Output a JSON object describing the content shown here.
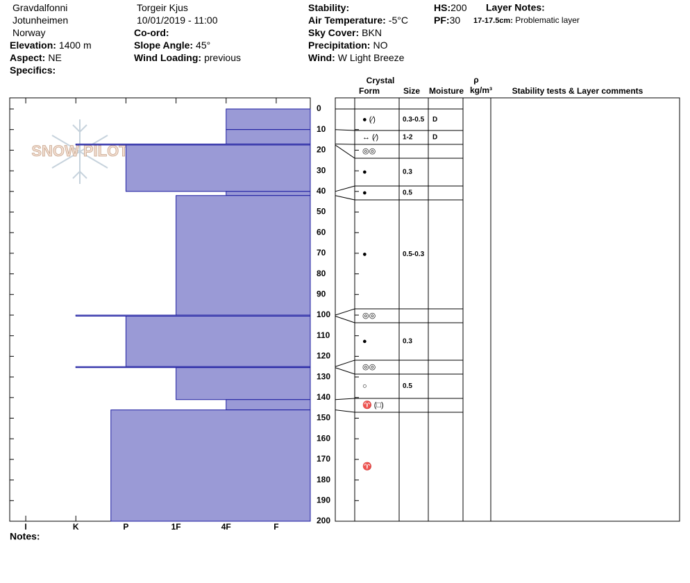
{
  "chart_data": {
    "type": "snow-profile",
    "header": [
      [
        {
          "value": "Gravdalfonni"
        },
        {
          "value": "Jotunheimen"
        },
        {
          "value": "Norway"
        },
        {
          "label": "Elevation:",
          "value": "1400 m"
        },
        {
          "label": "Aspect:",
          "value": "NE"
        },
        {
          "label": "Specifics:"
        }
      ],
      [
        {
          "value": "Torgeir Kjus"
        },
        {
          "value": "10/01/2019 - 11:00"
        },
        {
          "label": "Co-ord:"
        },
        {
          "label": "Slope Angle:",
          "value": "45°"
        },
        {
          "label": "Wind Loading:",
          "value": "previous"
        }
      ],
      [
        {
          "label": "Stability:"
        },
        {
          "label": "Air Temperature:",
          "value": "-5°C"
        },
        {
          "label": "Sky Cover:",
          "value": "BKN"
        },
        {
          "label": "Precipitation:",
          "value": "NO"
        },
        {
          "label": "Wind:",
          "value": "W Light Breeze"
        }
      ],
      [
        {
          "label": "HS:",
          "value": 200
        },
        {
          "label": "PF:",
          "value": 30
        }
      ]
    ],
    "layer_notes": {
      "title": "Layer Notes:",
      "depth": "17-17.5cm:",
      "text": "Problematic layer"
    },
    "notes_label": "Notes:",
    "watermark": "SNOW PILOT",
    "columns": {
      "crystal": "Crystal",
      "form": "Form",
      "size": "Size",
      "moisture": "Moisture",
      "rho": "ρ",
      "density": "kg/m³",
      "comments": "Stability tests & Layer comments"
    },
    "layers": [
      {
        "top": 0,
        "bottom": 10,
        "hardness": 2,
        "form": "● (⁄)",
        "size": "0.3-0.5",
        "moisture": "D"
      },
      {
        "top": 10,
        "bottom": 17,
        "hardness": 2,
        "form": "↔ (⁄)",
        "size": "1-2",
        "moisture": "D"
      },
      {
        "top": 17,
        "bottom": 17.5,
        "hardness": 5,
        "form": "◎◎",
        "size": null,
        "moisture": null
      },
      {
        "top": 17.5,
        "bottom": 40,
        "hardness": 4,
        "form": "●",
        "size": "0.3",
        "moisture": null
      },
      {
        "top": 40,
        "bottom": 42,
        "hardness": 2,
        "form": "●",
        "size": "0.5",
        "moisture": null
      },
      {
        "top": 42,
        "bottom": 100,
        "hardness": 3,
        "form": "●",
        "size": "0.5-0.3",
        "moisture": null
      },
      {
        "top": 100,
        "bottom": 100.5,
        "hardness": 5,
        "form": "◎◎",
        "size": null,
        "moisture": null
      },
      {
        "top": 100.5,
        "bottom": 125,
        "hardness": 4,
        "form": "●",
        "size": "0.3",
        "moisture": null
      },
      {
        "top": 125,
        "bottom": 125.5,
        "hardness": 5,
        "form": "◎◎",
        "size": null,
        "moisture": null
      },
      {
        "top": 125.5,
        "bottom": 141,
        "hardness": 3,
        "form": "○",
        "size": "0.5",
        "moisture": null
      },
      {
        "top": 141,
        "bottom": 146,
        "hardness": 2,
        "form": "♈ (□)",
        "size": null,
        "moisture": null
      },
      {
        "top": 146,
        "bottom": 200,
        "hardness": 4.3,
        "form": "♈",
        "size": null,
        "moisture": null
      }
    ],
    "color": "#9a9ad6",
    "edge_color": "#1c1ca0",
    "ylim": [
      0,
      200
    ],
    "yticks": [
      0,
      10,
      20,
      30,
      40,
      50,
      60,
      70,
      80,
      90,
      100,
      110,
      120,
      130,
      140,
      150,
      160,
      170,
      180,
      190,
      200
    ],
    "xlim": [
      6.32,
      0.32
    ],
    "xticks": [
      {
        "value": 6,
        "label": "I"
      },
      {
        "value": 5,
        "label": "K"
      },
      {
        "value": 4,
        "label": "P"
      },
      {
        "value": 3,
        "label": "1F"
      },
      {
        "value": 2,
        "label": "4F"
      },
      {
        "value": 1,
        "label": "F"
      }
    ]
  }
}
